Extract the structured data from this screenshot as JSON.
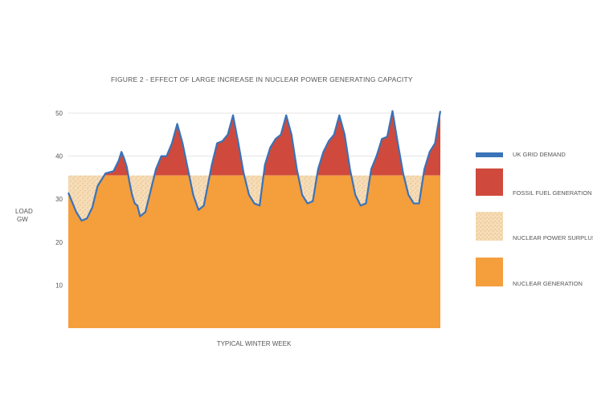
{
  "chart_data": {
    "type": "area",
    "title": "FIGURE 2 - EFFECT OF LARGE INCREASE IN NUCLEAR POWER GENERATING CAPACITY",
    "xlabel": "TYPICAL WINTER WEEK",
    "ylabel_line1": "LOAD",
    "ylabel_line2": "GW",
    "ylim": [
      0,
      50
    ],
    "yticks": [
      "10",
      "20",
      "30",
      "40",
      "50"
    ],
    "grid": "horizontal",
    "legend_position": "right",
    "nuclear_capacity_gw": 35.5,
    "colors": {
      "demand": "#3a73b8",
      "fossil": "#cf4a3c",
      "surplus": "#f5ddb8",
      "surplus_dot": "#e8a868",
      "nuclear": "#f59e3c"
    },
    "legend": [
      {
        "key": "demand",
        "label": "UK GRID DEMAND"
      },
      {
        "key": "fossil",
        "label": "FOSSIL FUEL GENERATION"
      },
      {
        "key": "surplus",
        "label": "NUCLEAR POWER SURPLUS"
      },
      {
        "key": "nuclear",
        "label": "NUCLEAR GENERATION"
      }
    ],
    "series": [
      {
        "key": "demand",
        "x": [
          0,
          0.05,
          0.15,
          0.25,
          0.35,
          0.45,
          0.55,
          0.7,
          0.85,
          0.95,
          1,
          1.05,
          1.1,
          1.15,
          1.2,
          1.25,
          1.3,
          1.35,
          1.45,
          1.55,
          1.65,
          1.75,
          1.85,
          1.95,
          2.05,
          2.15,
          2.25,
          2.35,
          2.45,
          2.55,
          2.7,
          2.8,
          2.9,
          3,
          3.1,
          3.2,
          3.3,
          3.4,
          3.5,
          3.6,
          3.7,
          3.8,
          3.9,
          4,
          4.1,
          4.2,
          4.3,
          4.4,
          4.5,
          4.6,
          4.7,
          4.8,
          4.9,
          5,
          5.1,
          5.2,
          5.3,
          5.4,
          5.5,
          5.6,
          5.7,
          5.8,
          5.9,
          6,
          6.1,
          6.2,
          6.3,
          6.4,
          6.5,
          6.6,
          6.7,
          6.8,
          6.9,
          7
        ],
        "values": [
          31.5,
          30,
          27,
          25,
          25.5,
          28,
          33,
          36,
          36.5,
          39,
          41,
          39.5,
          37.5,
          34,
          31,
          29,
          28.5,
          26,
          27,
          32,
          37,
          40,
          40,
          43,
          47.5,
          43,
          37,
          31,
          27.5,
          28.5,
          38,
          43,
          43.5,
          45,
          49.5,
          43,
          36,
          31,
          29,
          28.5,
          38,
          42,
          44,
          45,
          49.5,
          45,
          37,
          31,
          29,
          29.5,
          37,
          41,
          43.5,
          45,
          49.5,
          45,
          37,
          31,
          28.5,
          29,
          37,
          40,
          44,
          44.5,
          50.5,
          43,
          36,
          31,
          29,
          29,
          37,
          41,
          43,
          50.5
        ]
      }
    ]
  }
}
